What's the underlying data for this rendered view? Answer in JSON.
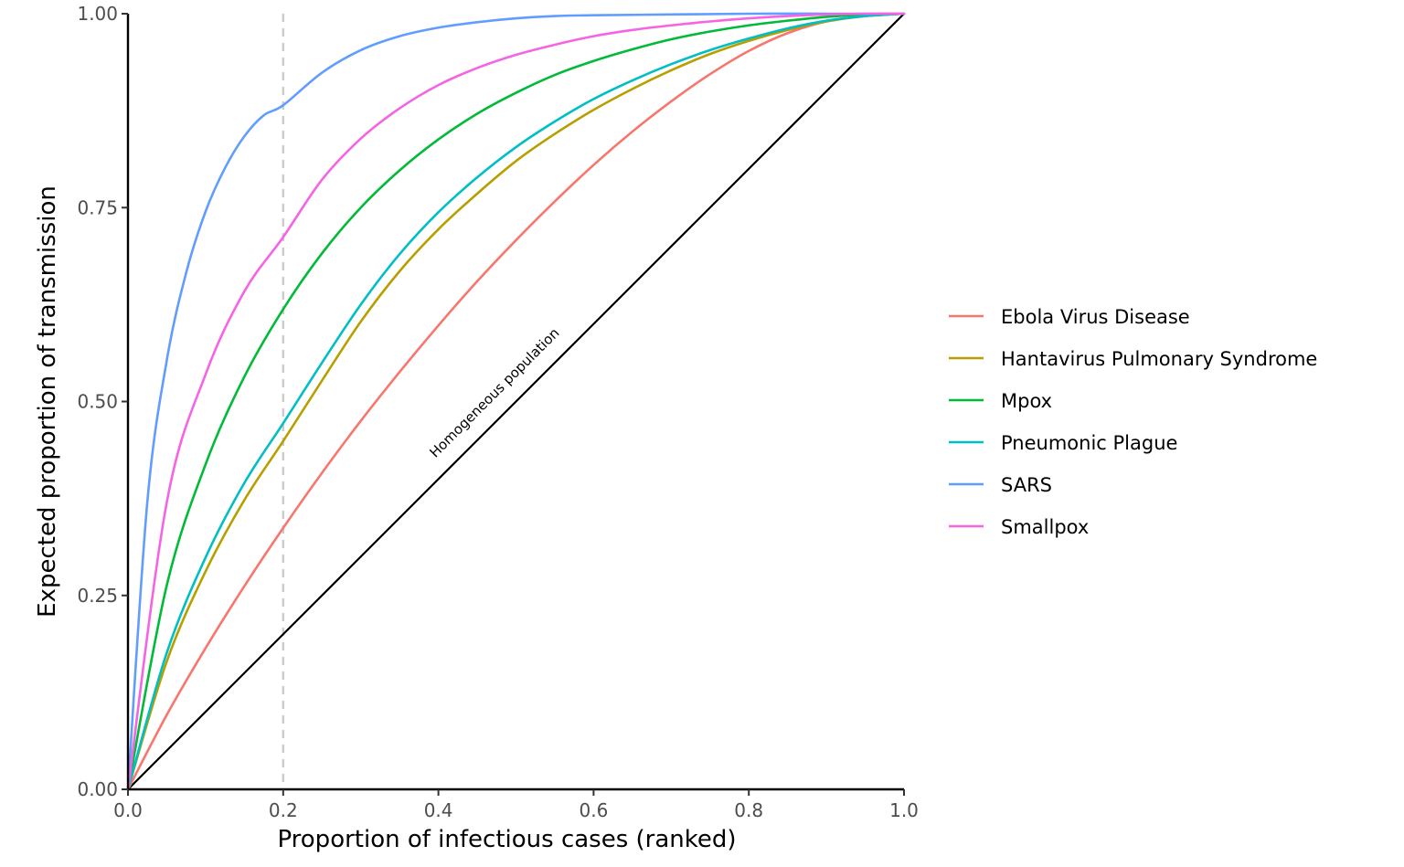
{
  "chart_data": {
    "type": "line",
    "title": "",
    "xlabel": "Proportion of infectious cases (ranked)",
    "ylabel": "Expected proportion of transmission",
    "xlim": [
      0,
      1
    ],
    "ylim": [
      0,
      1
    ],
    "x_ticks": [
      "0.0",
      "0.2",
      "0.4",
      "0.6",
      "0.8",
      "1.0"
    ],
    "y_ticks": [
      "0.00",
      "0.25",
      "0.50",
      "0.75",
      "1.00"
    ],
    "grid": false,
    "legend_position": "right",
    "reference_line": {
      "x": 0.2,
      "style": "dashed",
      "color": "#cccccc"
    },
    "homogeneous_line": {
      "x": [
        0,
        1
      ],
      "y": [
        0,
        1
      ],
      "color": "#000000"
    },
    "annotation": {
      "text": "Homogeneous population",
      "x": 0.5,
      "y": 0.5
    },
    "series": [
      {
        "name": "Ebola Virus Disease",
        "color": "#F8766D",
        "x": [
          0,
          0.05,
          0.1,
          0.15,
          0.2,
          0.25,
          0.3,
          0.35,
          0.4,
          0.45,
          0.5,
          0.55,
          0.6,
          0.65,
          0.7,
          0.75,
          0.8,
          0.85,
          0.9,
          0.95,
          1
        ],
        "y": [
          0,
          0.096,
          0.182,
          0.262,
          0.337,
          0.408,
          0.475,
          0.538,
          0.598,
          0.655,
          0.708,
          0.758,
          0.805,
          0.848,
          0.887,
          0.922,
          0.952,
          0.975,
          0.99,
          0.997,
          1
        ]
      },
      {
        "name": "Hantavirus Pulmonary Syndrome",
        "color": "#B79F00",
        "x": [
          0,
          0.05,
          0.1,
          0.15,
          0.2,
          0.25,
          0.3,
          0.35,
          0.4,
          0.45,
          0.5,
          0.55,
          0.6,
          0.65,
          0.7,
          0.75,
          0.8,
          0.85,
          0.9,
          0.95,
          1
        ],
        "y": [
          0,
          0.165,
          0.281,
          0.373,
          0.449,
          0.527,
          0.603,
          0.668,
          0.722,
          0.768,
          0.81,
          0.845,
          0.876,
          0.903,
          0.927,
          0.948,
          0.965,
          0.979,
          0.99,
          0.997,
          1
        ]
      },
      {
        "name": "Mpox",
        "color": "#00BA38",
        "x": [
          0,
          0.05,
          0.1,
          0.15,
          0.2,
          0.25,
          0.3,
          0.35,
          0.4,
          0.45,
          0.5,
          0.55,
          0.6,
          0.65,
          0.7,
          0.75,
          0.8,
          0.85,
          0.9,
          0.95,
          1
        ],
        "y": [
          0,
          0.263,
          0.419,
          0.532,
          0.619,
          0.691,
          0.75,
          0.798,
          0.838,
          0.871,
          0.898,
          0.921,
          0.939,
          0.954,
          0.967,
          0.977,
          0.985,
          0.991,
          0.996,
          0.999,
          1
        ]
      },
      {
        "name": "Pneumonic Plague",
        "color": "#00BFC4",
        "x": [
          0,
          0.05,
          0.1,
          0.15,
          0.2,
          0.25,
          0.3,
          0.35,
          0.4,
          0.45,
          0.5,
          0.55,
          0.6,
          0.65,
          0.7,
          0.75,
          0.8,
          0.85,
          0.9,
          0.95,
          1
        ],
        "y": [
          0,
          0.176,
          0.299,
          0.395,
          0.472,
          0.55,
          0.625,
          0.69,
          0.744,
          0.789,
          0.828,
          0.861,
          0.89,
          0.914,
          0.935,
          0.953,
          0.968,
          0.981,
          0.991,
          0.997,
          1
        ]
      },
      {
        "name": "SARS",
        "color": "#619CFF",
        "x": [
          0,
          0.025,
          0.05,
          0.075,
          0.1,
          0.125,
          0.15,
          0.175,
          0.2,
          0.25,
          0.3,
          0.35,
          0.4,
          0.45,
          0.5,
          0.55,
          0.6,
          0.7,
          0.8,
          0.9,
          1
        ],
        "y": [
          0,
          0.371,
          0.553,
          0.666,
          0.745,
          0.801,
          0.842,
          0.869,
          0.882,
          0.924,
          0.953,
          0.971,
          0.982,
          0.989,
          0.994,
          0.997,
          0.998,
          0.999,
          1,
          1,
          1
        ]
      },
      {
        "name": "Smallpox",
        "color": "#F564E3",
        "x": [
          0,
          0.05,
          0.1,
          0.15,
          0.2,
          0.25,
          0.3,
          0.35,
          0.4,
          0.45,
          0.5,
          0.55,
          0.6,
          0.65,
          0.7,
          0.75,
          0.8,
          0.85,
          0.9,
          0.95,
          1
        ],
        "y": [
          0,
          0.37,
          0.535,
          0.642,
          0.712,
          0.786,
          0.839,
          0.878,
          0.908,
          0.93,
          0.947,
          0.96,
          0.971,
          0.979,
          0.985,
          0.99,
          0.994,
          0.997,
          0.999,
          1,
          1
        ]
      }
    ]
  }
}
